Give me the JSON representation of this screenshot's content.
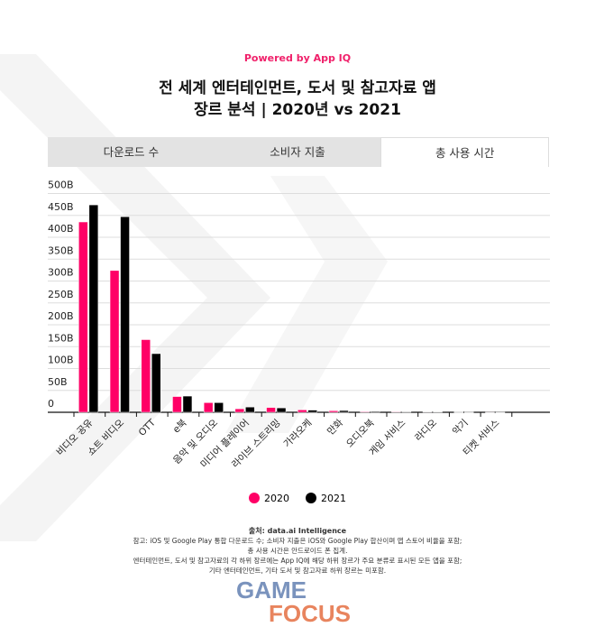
{
  "header": {
    "powered_by": "Powered by App IQ",
    "title_line1": "전 세계 엔터테인먼트, 도서 및 참고자료 앱",
    "title_line2": "장르 분석 | 2020년 vs 2021"
  },
  "tabs": [
    {
      "label": "다운로드 수",
      "active": false
    },
    {
      "label": "소비자 지출",
      "active": false
    },
    {
      "label": "총 사용 시간",
      "active": true
    }
  ],
  "colors": {
    "s2020": "#ff0066",
    "s2021": "#000000",
    "accent": "#f0206a"
  },
  "chart_data": {
    "type": "bar",
    "title": "",
    "categories": [
      "비디오 공유",
      "쇼트 비디오",
      "OTT",
      "e북",
      "음악 및 오디오",
      "미디어 플레이어",
      "라이브 스트리밍",
      "가라오케",
      "만화",
      "오디오북",
      "게임 서비스",
      "라디오",
      "악기",
      "티켓 서비스"
    ],
    "series": [
      {
        "name": "2020",
        "values": [
          435,
          324,
          166,
          36,
          22,
          8,
          11,
          5.5,
          3.5,
          1.5,
          1.2,
          1,
          0.5,
          0.1
        ]
      },
      {
        "name": "2021",
        "values": [
          474,
          447,
          134,
          37,
          22,
          12,
          10,
          5,
          4,
          2,
          1.2,
          1,
          0.3,
          0.1
        ]
      }
    ],
    "yticks": [
      "0",
      "50B",
      "100B",
      "150B",
      "200B",
      "250B",
      "300B",
      "350B",
      "400B",
      "450B",
      "500B"
    ],
    "ylim": [
      0,
      500
    ],
    "ylabel": "",
    "xlabel": "",
    "grid": true,
    "legend": "bottom"
  },
  "legend": {
    "s2020": "2020",
    "s2021": "2021"
  },
  "footer": {
    "source": "출처: data.ai Intelligence",
    "note1": "참고: iOS 및 Google Play 통합 다운로드 수; 소비자 지출은 iOS와 Google Play 합산이며 앱 스토어 비율을 포함;",
    "note2": "총 사용 시간은 안드로이드 폰 집계.",
    "note3": "엔터테인먼트, 도서 및 참고자료의 각 하위 장르에는 App IQ에 해당 하위 장르가 주요 분류로 표시된 모든 앱을 포함;",
    "note4": "기타 엔터테인먼트, 기타 도서 및 참고자료 하위 장르는 미포함."
  },
  "logo": {
    "line1": "GAME",
    "line2": "FOCUS"
  }
}
